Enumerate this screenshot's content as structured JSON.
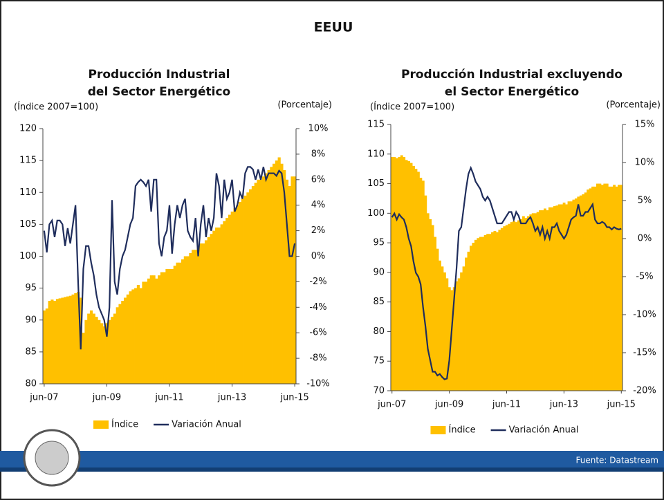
{
  "slide": {
    "title": "EEUU",
    "source": "Fuente: Datastream"
  },
  "chart_data": [
    {
      "type": "bar-line",
      "title": [
        "Producción Industrial",
        "del Sector Energético"
      ],
      "ylabel": "(Índice 2007=100)",
      "y2label": "(Porcentaje)",
      "categories": [
        "jun-07",
        null,
        null,
        null,
        null,
        null,
        null,
        null,
        null,
        null,
        null,
        null,
        null,
        null,
        null,
        null,
        null,
        null,
        null,
        null,
        null,
        null,
        null,
        null,
        "jun-09",
        null,
        null,
        null,
        null,
        null,
        null,
        null,
        null,
        null,
        null,
        null,
        null,
        null,
        null,
        null,
        null,
        null,
        null,
        null,
        null,
        null,
        null,
        null,
        "jun-11",
        null,
        null,
        null,
        null,
        null,
        null,
        null,
        null,
        null,
        null,
        null,
        null,
        null,
        null,
        null,
        null,
        null,
        null,
        null,
        null,
        null,
        null,
        null,
        "jun-13",
        null,
        null,
        null,
        null,
        null,
        null,
        null,
        null,
        null,
        null,
        null,
        null,
        null,
        null,
        null,
        null,
        null,
        null,
        null,
        null,
        null,
        null,
        null,
        "jun-15"
      ],
      "ylim": [
        80,
        120
      ],
      "yticks": [
        80,
        85,
        90,
        95,
        100,
        105,
        110,
        115,
        120
      ],
      "y2lim": [
        -10,
        10
      ],
      "y2ticks": [
        {
          "value": -10,
          "label": "-10%"
        },
        {
          "value": -8,
          "label": "-8%"
        },
        {
          "value": -6,
          "label": "-6%"
        },
        {
          "value": -4,
          "label": "-4%"
        },
        {
          "value": -2,
          "label": "-2%"
        },
        {
          "value": 0,
          "label": "0%"
        },
        {
          "value": 2,
          "label": "2%"
        },
        {
          "value": 4,
          "label": "4%"
        },
        {
          "value": 6,
          "label": "6%"
        },
        {
          "value": 8,
          "label": "8%"
        },
        {
          "value": 10,
          "label": "10%"
        }
      ],
      "series": [
        {
          "name": "Índice",
          "color": "#ffc000",
          "kind": "bar",
          "axis": "y",
          "values": [
            91.5,
            91.8,
            93,
            93.2,
            93,
            93.3,
            93.4,
            93.5,
            93.6,
            93.7,
            93.8,
            94,
            94.2,
            94.4,
            93.5,
            88,
            90,
            91,
            91.5,
            91,
            90.5,
            90,
            89.5,
            89,
            89.5,
            90,
            90.5,
            91,
            92,
            92.5,
            93,
            93.5,
            94,
            94.5,
            94.8,
            95,
            95.5,
            95,
            96,
            96,
            96.5,
            97,
            97,
            96.5,
            97,
            97.5,
            97.5,
            98,
            98,
            98,
            98.5,
            99,
            99,
            99.5,
            100,
            100,
            100.5,
            101,
            101,
            101.5,
            102,
            102,
            102.5,
            103,
            103.5,
            104,
            104.5,
            104.5,
            105,
            105.5,
            106,
            106.5,
            107,
            107.5,
            108,
            108.5,
            109,
            109.5,
            110,
            110.5,
            111,
            111.5,
            112,
            112,
            112.5,
            113,
            113.5,
            114,
            114.5,
            115,
            115.5,
            114.5,
            113.5,
            112,
            111,
            112.5,
            112.5
          ]
        },
        {
          "name": "Variación Anual",
          "color": "#1f2d5c",
          "kind": "line",
          "axis": "y2",
          "values": [
            2,
            0.3,
            2.5,
            2.8,
            1.5,
            2.8,
            2.8,
            2.5,
            0.8,
            2.2,
            1,
            2.5,
            4,
            -2,
            -7.3,
            -1,
            0.8,
            0.8,
            -0.5,
            -1.5,
            -3,
            -4,
            -4.5,
            -5,
            -6.3,
            -4,
            4.4,
            -2,
            -3,
            -1,
            0,
            0.5,
            1.5,
            2.5,
            3,
            5.5,
            5.8,
            6,
            5.8,
            5.5,
            6,
            3.5,
            6,
            6,
            1,
            0,
            1.5,
            2,
            4,
            0.2,
            2.5,
            4,
            3,
            4,
            4.5,
            2,
            1.5,
            1.2,
            3,
            0,
            2.5,
            4,
            1.5,
            3,
            2,
            3,
            6.5,
            5.5,
            3,
            6,
            4.5,
            5,
            6,
            3.5,
            4,
            5,
            4.5,
            6.5,
            7,
            7,
            6.8,
            6,
            6.8,
            6,
            7,
            6,
            6.5,
            6.5,
            6.5,
            6.3,
            6.7,
            6.5,
            5,
            2.5,
            0,
            0,
            1
          ]
        }
      ]
    },
    {
      "type": "bar-line",
      "title": [
        "Producción Industrial excluyendo",
        "el Sector Energético"
      ],
      "ylabel": "(Índice 2007=100)",
      "y2label": "(Porcentaje)",
      "categories": [
        "jun-07",
        null,
        null,
        null,
        null,
        null,
        null,
        null,
        null,
        null,
        null,
        null,
        null,
        null,
        null,
        null,
        null,
        null,
        null,
        null,
        null,
        null,
        null,
        null,
        "jun-09",
        null,
        null,
        null,
        null,
        null,
        null,
        null,
        null,
        null,
        null,
        null,
        null,
        null,
        null,
        null,
        null,
        null,
        null,
        null,
        null,
        null,
        null,
        null,
        "jun-11",
        null,
        null,
        null,
        null,
        null,
        null,
        null,
        null,
        null,
        null,
        null,
        null,
        null,
        null,
        null,
        null,
        null,
        null,
        null,
        null,
        null,
        null,
        null,
        "jun-13",
        null,
        null,
        null,
        null,
        null,
        null,
        null,
        null,
        null,
        null,
        null,
        null,
        null,
        null,
        null,
        null,
        null,
        null,
        null,
        null,
        null,
        null,
        null,
        "jun-15"
      ],
      "ylim": [
        70,
        115
      ],
      "yticks": [
        70,
        75,
        80,
        85,
        90,
        95,
        100,
        105,
        110,
        115
      ],
      "y2lim": [
        -20,
        15
      ],
      "y2ticks": [
        {
          "value": -20,
          "label": "-20%"
        },
        {
          "value": -15,
          "label": "-15%"
        },
        {
          "value": -10,
          "label": "-10%"
        },
        {
          "value": -5,
          "label": "-5%"
        },
        {
          "value": 0,
          "label": "0%"
        },
        {
          "value": 5,
          "label": "5%"
        },
        {
          "value": 10,
          "label": "10%"
        },
        {
          "value": 15,
          "label": "15%"
        }
      ],
      "series": [
        {
          "name": "Índice",
          "color": "#ffc000",
          "kind": "bar",
          "axis": "y",
          "values": [
            109.5,
            109.5,
            109.3,
            109.5,
            109.8,
            109.5,
            109,
            108.8,
            108.5,
            108,
            107.5,
            107,
            106,
            105.5,
            103,
            100,
            99,
            98,
            96,
            94,
            92,
            91,
            90,
            89,
            87.5,
            87,
            87.5,
            88.5,
            89,
            90,
            91,
            92.5,
            93.5,
            94.5,
            95,
            95.5,
            95.8,
            96,
            96,
            96.3,
            96.5,
            96.5,
            96.8,
            97,
            96.8,
            97.2,
            97.5,
            97.8,
            98,
            98.2,
            98.5,
            98.7,
            98.5,
            98.8,
            99,
            99.5,
            99.2,
            99.5,
            99.8,
            100,
            100,
            100.2,
            100.5,
            100.5,
            100.8,
            100.5,
            101,
            101,
            101.2,
            101.3,
            101.5,
            101.5,
            101.8,
            101.5,
            102,
            102,
            102.3,
            102.5,
            102.8,
            103,
            103.2,
            103.5,
            104,
            104.2,
            104.5,
            104.5,
            105,
            105,
            104.8,
            105,
            105,
            104.5,
            104.5,
            104.8,
            104.5,
            104.8,
            104.8
          ]
        },
        {
          "name": "Variación Anual",
          "color": "#1f2d5c",
          "kind": "line",
          "axis": "y2",
          "values": [
            2.8,
            3.3,
            2.5,
            3.2,
            2.8,
            2.5,
            1.5,
            0,
            -1,
            -3,
            -4.5,
            -5,
            -6,
            -9,
            -11.5,
            -14.5,
            -16,
            -17.5,
            -17.5,
            -18,
            -17.8,
            -18.2,
            -18.5,
            -18.4,
            -16,
            -12,
            -8,
            -4,
            1,
            1.5,
            4,
            6.5,
            8.5,
            9.3,
            8.5,
            7.5,
            7,
            6.5,
            5.5,
            5,
            5.5,
            5,
            4,
            3,
            2,
            2,
            2,
            2.5,
            3,
            3.5,
            3.5,
            2.5,
            3.5,
            3,
            2,
            2,
            2,
            2.5,
            2.8,
            2,
            1,
            1.5,
            0.5,
            1.5,
            0,
            1,
            0,
            1.5,
            1.5,
            2,
            1,
            0.5,
            0,
            0.5,
            1.5,
            2.5,
            2.8,
            3,
            4.5,
            3,
            3,
            3.5,
            3.5,
            4,
            4.5,
            2.5,
            2,
            2,
            2.2,
            2,
            1.5,
            1.5,
            1.2,
            1.5,
            1.3,
            1.2,
            1.3
          ]
        }
      ]
    }
  ]
}
